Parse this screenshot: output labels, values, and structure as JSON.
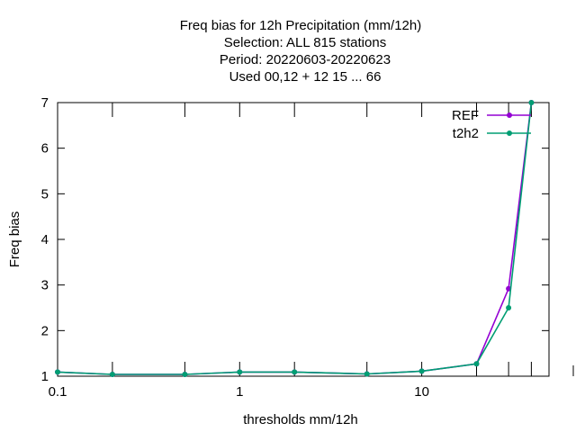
{
  "chart_data": {
    "type": "line",
    "title_lines": [
      "Freq bias  for 12h Precipitation (mm/12h)",
      "Selection: ALL    815 stations",
      "Period: 20220603-20220623",
      "Used  00,12  + 12 15 ... 66"
    ],
    "xlabel": "thresholds mm/12h",
    "ylabel": "Freq bias",
    "x_scale": "log",
    "xlim": [
      0.1,
      50
    ],
    "ylim": [
      1,
      7
    ],
    "x_tick_labels": [
      {
        "v": 0.1,
        "label": "0.1"
      },
      {
        "v": 1,
        "label": "1"
      },
      {
        "v": 10,
        "label": "10"
      }
    ],
    "x_ticks": [
      0.1,
      0.2,
      0.5,
      1,
      2,
      5,
      10,
      20,
      30,
      40,
      50
    ],
    "y_ticks": [
      1,
      2,
      3,
      4,
      5,
      6,
      7
    ],
    "legend_position": "top-right",
    "grid": false,
    "x": [
      0.1,
      0.2,
      0.5,
      1,
      2,
      5,
      10,
      20,
      30,
      40
    ],
    "series": [
      {
        "name": "REF",
        "color": "#9400d3",
        "values": [
          1.09,
          1.04,
          1.04,
          1.09,
          1.09,
          1.05,
          1.11,
          1.27,
          2.92,
          7.0
        ]
      },
      {
        "name": "t2h2",
        "color": "#009e73",
        "values": [
          1.09,
          1.04,
          1.04,
          1.09,
          1.09,
          1.05,
          1.11,
          1.27,
          2.5,
          7.0
        ]
      }
    ]
  }
}
